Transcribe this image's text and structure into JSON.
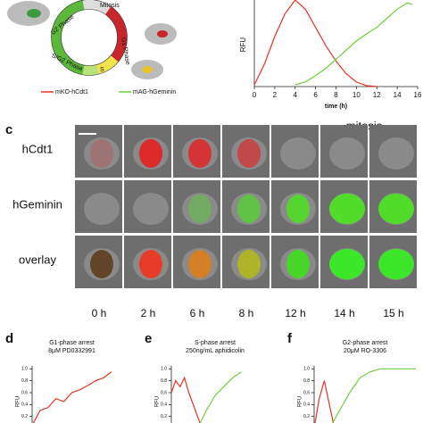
{
  "diagram": {
    "phases": [
      "G2 Phase",
      "Mitosis",
      "G1 Phase",
      "S/G2 Phase",
      "S"
    ],
    "legend": [
      "mKO-hCdt1",
      "mAG-hGeminin"
    ]
  },
  "panel_c": {
    "label": "c",
    "mitosis": "mitosis",
    "rows": [
      "hCdt1",
      "hGeminin",
      "overlay"
    ],
    "columns": [
      "0 h",
      "2 h",
      "6 h",
      "8 h",
      "12 h",
      "14 h",
      "15 h"
    ]
  },
  "chart_data": [
    {
      "type": "line",
      "xlabel": "time (h)",
      "ylabel": "RFU",
      "xlim": [
        0,
        16
      ],
      "ylim": [
        0,
        1
      ],
      "xticks": [
        0,
        2,
        4,
        6,
        8,
        10,
        12,
        14,
        16
      ],
      "series": [
        {
          "name": "mKO-hCdt1",
          "color": "#e53227",
          "x": [
            0,
            1,
            2,
            3,
            4,
            5,
            6,
            7,
            8,
            9,
            10,
            11,
            12
          ],
          "values": [
            0.02,
            0.25,
            0.55,
            0.8,
            0.95,
            0.85,
            0.65,
            0.45,
            0.28,
            0.14,
            0.05,
            0.01,
            0
          ]
        },
        {
          "name": "mAG-hGeminin",
          "color": "#6fcf3a",
          "x": [
            4,
            5,
            6,
            7,
            8,
            9,
            10,
            11,
            12,
            13,
            14,
            15,
            15.5
          ],
          "values": [
            0.02,
            0.05,
            0.12,
            0.2,
            0.3,
            0.4,
            0.5,
            0.58,
            0.65,
            0.75,
            0.85,
            0.92,
            0.9
          ]
        }
      ]
    },
    {
      "type": "line",
      "label": "d",
      "title": "G1-phase arrest",
      "subtitle": "8μM PD0332991",
      "ylabel": "RFU",
      "xlim": [
        0,
        10
      ],
      "ylim": [
        0,
        1.05
      ],
      "yticks": [
        0.2,
        0.4,
        0.6,
        0.8,
        {
          "value": 1,
          "label": "1.0"
        }
      ],
      "series": [
        {
          "color": "#e53227",
          "x": [
            0,
            1,
            2,
            3,
            4,
            5,
            6,
            7,
            8,
            9,
            10
          ],
          "values": [
            0.05,
            0.3,
            0.35,
            0.5,
            0.45,
            0.6,
            0.65,
            0.72,
            0.8,
            0.85,
            0.95
          ]
        }
      ]
    },
    {
      "type": "line",
      "label": "e",
      "title": "S-phase arrest",
      "subtitle": "250ng/mL aphidicolin",
      "ylabel": "RFU",
      "xlim": [
        0,
        10
      ],
      "ylim": [
        0,
        1.05
      ],
      "yticks": [
        0.2,
        0.4,
        0.6,
        0.8,
        {
          "value": 1,
          "label": "1.0"
        }
      ],
      "series": [
        {
          "color": "#e53227",
          "x": [
            0,
            0.5,
            1,
            1.5,
            2,
            2.5,
            3,
            3.5
          ],
          "values": [
            0.6,
            0.8,
            0.7,
            0.85,
            0.6,
            0.4,
            0.2,
            0
          ]
        },
        {
          "color": "#6fcf3a",
          "x": [
            3,
            4,
            5,
            6,
            7,
            8
          ],
          "values": [
            0,
            0.3,
            0.55,
            0.7,
            0.85,
            0.95
          ]
        }
      ]
    },
    {
      "type": "line",
      "label": "f",
      "title": "G2-phase arrest",
      "subtitle": "20μM RO-3306",
      "ylabel": "RFU",
      "xlim": [
        0,
        10
      ],
      "ylim": [
        0,
        1.05
      ],
      "yticks": [
        0.2,
        0.4,
        0.6,
        0.8,
        {
          "value": 1,
          "label": "1.0"
        }
      ],
      "series": [
        {
          "color": "#e53227",
          "x": [
            0,
            0.5,
            1,
            1.5,
            2
          ],
          "values": [
            0,
            0.5,
            0.8,
            0.4,
            0
          ]
        },
        {
          "color": "#6fcf3a",
          "x": [
            1.5,
            2.5,
            3.5,
            4.5,
            5.5,
            6.5,
            8,
            10
          ],
          "values": [
            0,
            0.3,
            0.6,
            0.85,
            0.95,
            1,
            1,
            1
          ]
        }
      ]
    }
  ]
}
